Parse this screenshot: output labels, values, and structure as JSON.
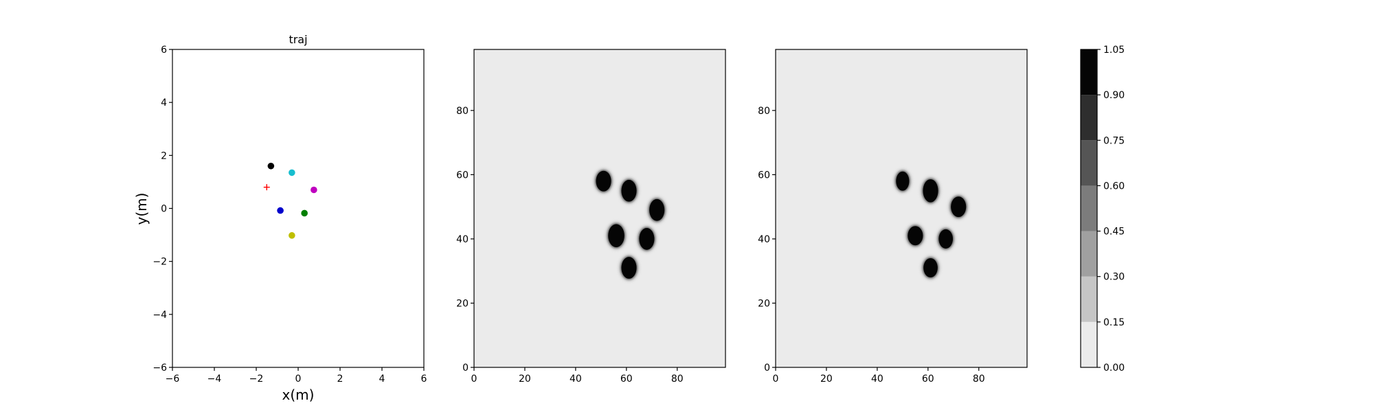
{
  "chart_data": [
    {
      "type": "scatter",
      "title": "traj",
      "xlabel": "x(m)",
      "ylabel": "y(m)",
      "xlim": [
        -6,
        6
      ],
      "ylim": [
        -6,
        6
      ],
      "xticks": [
        -6,
        -4,
        -2,
        0,
        2,
        4,
        6
      ],
      "yticks": [
        -6,
        -4,
        -2,
        0,
        2,
        4,
        6
      ],
      "grid": false,
      "points": [
        {
          "x": -1.3,
          "y": 1.6,
          "color": "#000000",
          "marker": "circle"
        },
        {
          "x": -0.3,
          "y": 1.35,
          "color": "#17becf",
          "marker": "circle"
        },
        {
          "x": 0.75,
          "y": 0.7,
          "color": "#bf00bf",
          "marker": "circle"
        },
        {
          "x": -0.85,
          "y": -0.08,
          "color": "#0000cc",
          "marker": "circle"
        },
        {
          "x": 0.3,
          "y": -0.18,
          "color": "#007f00",
          "marker": "circle"
        },
        {
          "x": -0.3,
          "y": -1.02,
          "color": "#bfbf00",
          "marker": "circle"
        },
        {
          "x": -1.5,
          "y": 0.8,
          "color": "#ff0000",
          "marker": "plus"
        }
      ]
    },
    {
      "type": "heatmap",
      "title": "",
      "xlabel": "",
      "ylabel": "",
      "xlim": [
        0,
        99
      ],
      "ylim": [
        0,
        99
      ],
      "xticks": [
        0,
        20,
        40,
        60,
        80
      ],
      "yticks": [
        0,
        20,
        40,
        60,
        80
      ],
      "background_value": 0.05,
      "blobs": [
        {
          "x": 51,
          "y": 58,
          "rx": 3.0,
          "ry": 3.2,
          "value": 1.0
        },
        {
          "x": 61,
          "y": 55,
          "rx": 3.0,
          "ry": 3.4,
          "value": 1.0
        },
        {
          "x": 72,
          "y": 49,
          "rx": 3.0,
          "ry": 3.4,
          "value": 1.0
        },
        {
          "x": 56,
          "y": 41,
          "rx": 3.2,
          "ry": 3.6,
          "value": 1.0
        },
        {
          "x": 68,
          "y": 40,
          "rx": 3.0,
          "ry": 3.4,
          "value": 1.0
        },
        {
          "x": 61,
          "y": 31,
          "rx": 3.0,
          "ry": 3.4,
          "value": 1.0
        }
      ]
    },
    {
      "type": "heatmap",
      "title": "",
      "xlabel": "",
      "ylabel": "",
      "xlim": [
        0,
        99
      ],
      "ylim": [
        0,
        99
      ],
      "xticks": [
        0,
        20,
        40,
        60,
        80
      ],
      "yticks": [
        0,
        20,
        40,
        60,
        80
      ],
      "background_value": 0.05,
      "blobs": [
        {
          "x": 50,
          "y": 58,
          "rx": 2.6,
          "ry": 3.0,
          "value": 1.0
        },
        {
          "x": 61,
          "y": 55,
          "rx": 3.0,
          "ry": 3.6,
          "value": 1.0
        },
        {
          "x": 72,
          "y": 50,
          "rx": 3.0,
          "ry": 3.2,
          "value": 1.0
        },
        {
          "x": 55,
          "y": 41,
          "rx": 3.0,
          "ry": 3.0,
          "value": 1.0
        },
        {
          "x": 67,
          "y": 40,
          "rx": 2.8,
          "ry": 3.0,
          "value": 1.0
        },
        {
          "x": 61,
          "y": 31,
          "rx": 2.8,
          "ry": 3.0,
          "value": 1.0
        }
      ]
    }
  ],
  "colorbar": {
    "levels": [
      0.0,
      0.15,
      0.3,
      0.45,
      0.6,
      0.75,
      0.9,
      1.05
    ],
    "tick_labels": [
      "0.00",
      "0.15",
      "0.30",
      "0.45",
      "0.60",
      "0.75",
      "0.90",
      "1.05"
    ],
    "colors": [
      "#ebebeb",
      "#c6c6c6",
      "#a0a0a0",
      "#7c7c7c",
      "#555555",
      "#2e2e2e",
      "#050505"
    ]
  }
}
